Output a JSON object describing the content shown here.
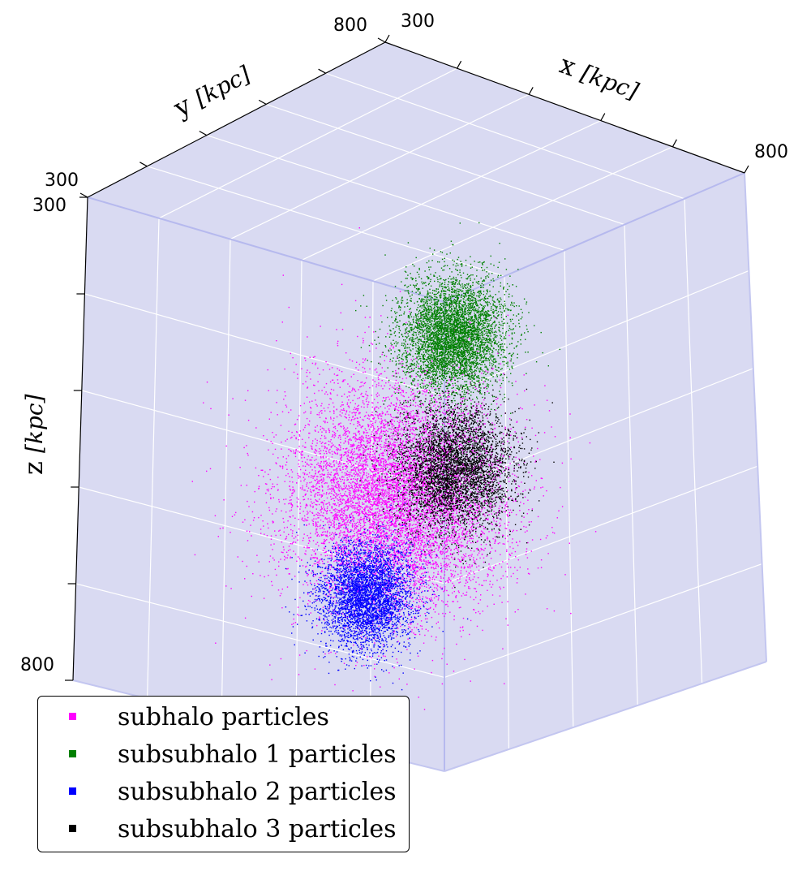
{
  "chart_data": {
    "type": "scatter",
    "projection": "3d",
    "title": "",
    "axes": {
      "x": {
        "label": "x",
        "unit": "kpc",
        "range": [
          300,
          800
        ],
        "tick_labels": [
          "300",
          "800"
        ]
      },
      "y": {
        "label": "y",
        "unit": "kpc",
        "range": [
          300,
          800
        ],
        "tick_labels": [
          "300",
          "800"
        ]
      },
      "z": {
        "label": "z",
        "unit": "kpc",
        "range": [
          300,
          800
        ],
        "tick_labels": [
          "300",
          "800"
        ],
        "inverted": true
      }
    },
    "pane_color": "#d9daf2",
    "grid": true,
    "legend_position": "lower-left",
    "series": [
      {
        "name": "subhalo particles",
        "color": "#ff00ff",
        "center": [
          560,
          520,
          610
        ],
        "spread": [
          60,
          55,
          55
        ]
      },
      {
        "name": "subsubhalo 1 particles",
        "color": "#008000",
        "center": [
          590,
          570,
          450
        ],
        "spread": [
          28,
          28,
          28
        ]
      },
      {
        "name": "subsubhalo 2 particles",
        "color": "#0000ff",
        "center": [
          555,
          480,
          700
        ],
        "spread": [
          25,
          25,
          25
        ]
      },
      {
        "name": "subsubhalo 3 particles",
        "color": "#000000",
        "center": [
          640,
          520,
          560
        ],
        "spread": [
          30,
          30,
          30
        ]
      }
    ]
  }
}
